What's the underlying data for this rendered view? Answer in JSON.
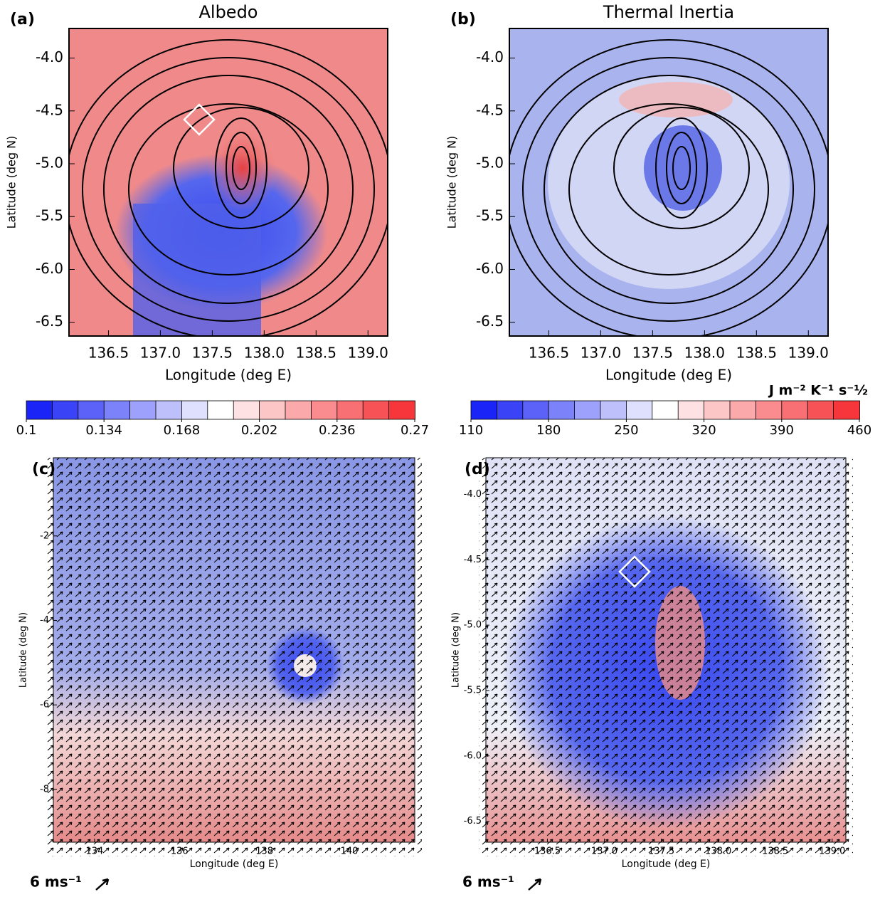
{
  "chart_data": [
    {
      "type": "map",
      "panel": "(a)",
      "title": "Albedo",
      "xlabel": "Longitude (deg E)",
      "ylabel": "Latitude (deg N)",
      "xlim": [
        136.12,
        139.19
      ],
      "ylim": [
        -6.63,
        -3.72
      ],
      "xticks": [
        136.5,
        {
          "value": 137,
          "label": "137.0"
        },
        137.5,
        {
          "value": 138,
          "label": "138.0"
        },
        138.5,
        {
          "value": 139,
          "label": "139.0"
        }
      ],
      "yticks": [
        {
          "value": -4,
          "label": "-4.0"
        },
        -4.5,
        {
          "value": -5,
          "label": "-5.0"
        },
        -5.5,
        {
          "value": -6,
          "label": "-6.0"
        },
        -6.5
      ],
      "colorbar": {
        "lim": [
          0.1,
          0.27
        ],
        "ticks": [
          0.1,
          0.134,
          0.168,
          0.202,
          0.236,
          0.27
        ],
        "colors": [
          "#0a14f5",
          "#ffffff",
          "#f5282d"
        ]
      }
    },
    {
      "type": "map",
      "panel": "(b)",
      "title": "Thermal Inertia",
      "xlabel": "Longitude (deg E)",
      "ylabel": "Latitude (deg N)",
      "xlim": [
        136.12,
        139.19
      ],
      "ylim": [
        -6.63,
        -3.72
      ],
      "xticks": [
        136.5,
        {
          "value": 137,
          "label": "137.0"
        },
        137.5,
        {
          "value": 138,
          "label": "138.0"
        },
        138.5,
        {
          "value": 139,
          "label": "139.0"
        }
      ],
      "yticks": [
        {
          "value": -4,
          "label": "-4.0"
        },
        -4.5,
        {
          "value": -5,
          "label": "-5.0"
        },
        -5.5,
        {
          "value": -6,
          "label": "-6.0"
        },
        -6.5
      ],
      "colorbar": {
        "lim": [
          110,
          460
        ],
        "ticks": [
          110,
          180,
          250,
          320,
          390,
          460
        ],
        "unit": "J m⁻² K⁻¹ s⁻½",
        "colors": [
          "#0a14f5",
          "#ffffff",
          "#f5282d"
        ]
      }
    },
    {
      "type": "map",
      "panel": "(c)",
      "xlabel": "Longitude (deg E)",
      "ylabel": "Latitude (deg N)",
      "xlim": [
        133.03,
        141.54
      ],
      "ylim": [
        -9.25,
        -0.15
      ],
      "xticks": [
        134,
        136,
        138,
        140
      ],
      "yticks": [
        -2,
        -4,
        -6,
        -8
      ],
      "vector_scale": "6 ms⁻¹"
    },
    {
      "type": "map",
      "panel": "(d)",
      "xlabel": "Longitude (deg E)",
      "ylabel": "Latitude (deg N)",
      "xlim": [
        135.96,
        139.12
      ],
      "ylim": [
        -6.66,
        -3.72
      ],
      "xticks": [
        136.5,
        {
          "value": 137,
          "label": "137.0"
        },
        137.5,
        {
          "value": 138,
          "label": "138.0"
        },
        138.5,
        {
          "value": 139,
          "label": "139.0"
        }
      ],
      "yticks": [
        {
          "value": -4,
          "label": "-4.0"
        },
        -4.5,
        {
          "value": -5,
          "label": "-5.0"
        },
        -5.5,
        {
          "value": -6,
          "label": "-6.0"
        },
        -6.5
      ],
      "vector_scale": "6 ms⁻¹"
    }
  ]
}
